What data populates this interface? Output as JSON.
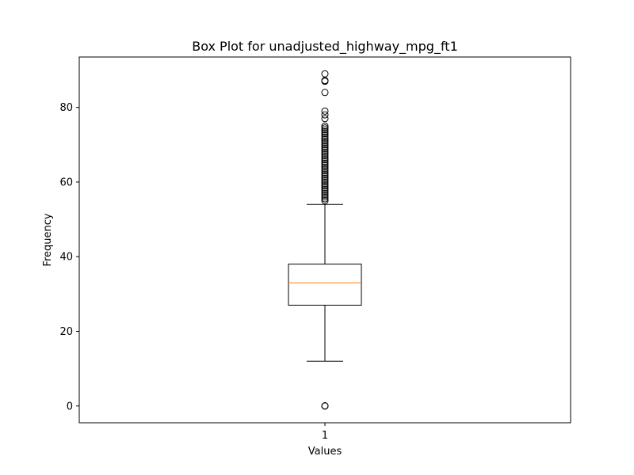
{
  "chart_data": {
    "type": "box",
    "title": "Box Plot for unadjusted_highway_mpg_ft1",
    "xlabel": "Values",
    "ylabel": "Frequency",
    "categories": [
      "1"
    ],
    "ylim": [
      -4.5,
      93.5
    ],
    "yticks": [
      0,
      20,
      40,
      60,
      80
    ],
    "grid": false,
    "box": {
      "whisker_low": 12,
      "q1": 27,
      "median": 33,
      "q3": 38,
      "whisker_high": 54
    },
    "outliers": [
      0,
      0,
      0,
      55,
      55.5,
      56,
      56.5,
      57,
      57.5,
      58,
      58.5,
      59,
      59.5,
      60,
      60.5,
      61,
      61.5,
      62,
      62.5,
      63,
      63.5,
      64,
      64.5,
      65,
      65.5,
      66,
      66.5,
      67,
      67.5,
      68,
      68.5,
      69,
      69.5,
      70,
      70.5,
      71,
      71.5,
      72,
      72.5,
      73,
      73.5,
      74,
      74.5,
      75,
      77,
      78,
      79,
      84,
      87,
      87.2,
      89
    ],
    "colors": {
      "median": "#ff7f0e",
      "box": "#000000",
      "outlier": "#000000"
    }
  }
}
